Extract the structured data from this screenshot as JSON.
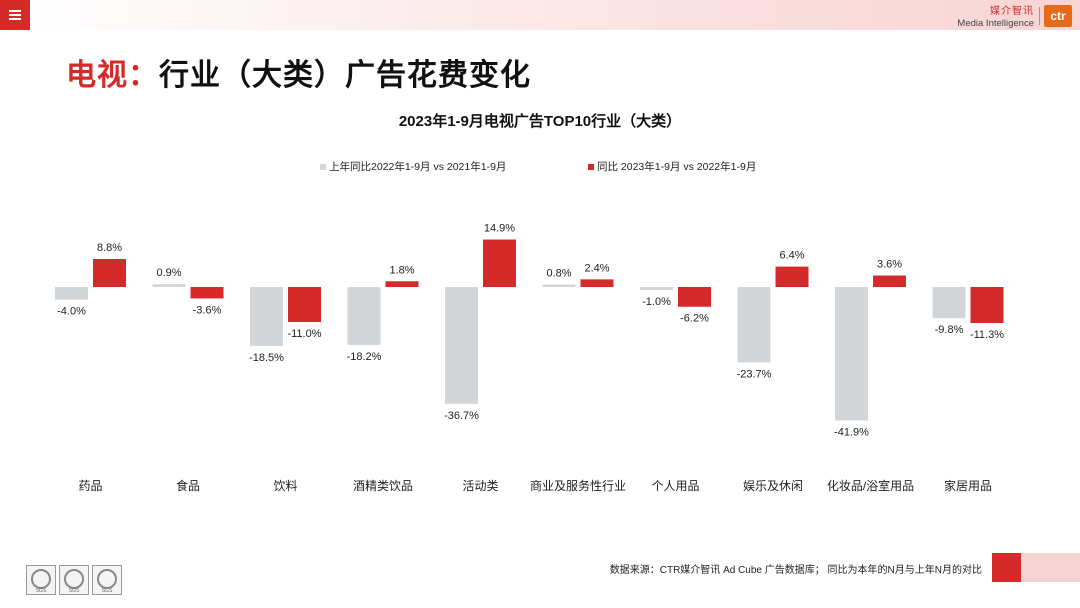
{
  "header": {
    "menu_icon": "menu-icon",
    "brand_cn": "媒介智讯",
    "brand_en": "Media Intelligence",
    "brand_logo": "ctr",
    "colors": {
      "accent": "#d42a2a",
      "logo": "#e56a1c",
      "band": "#f8d4d4"
    }
  },
  "page": {
    "title_accent": "电视：",
    "title_rest": "行业（大类）广告花费变化"
  },
  "chart_data": {
    "type": "bar",
    "title": "2023年1-9月电视广告TOP10行业（大类）",
    "categories": [
      "药品",
      "食品",
      "饮料",
      "酒精类饮品",
      "活动类",
      "商业及服务性行业",
      "个人用品",
      "娱乐及休闲",
      "化妆品/浴室用品",
      "家居用品"
    ],
    "series": [
      {
        "name": "上年同比2022年1-9月  vs  2021年1-9月",
        "color": "#d3d6d8",
        "values": [
          -4.0,
          0.9,
          -18.5,
          -18.2,
          -36.7,
          0.8,
          -1.0,
          -23.7,
          -41.9,
          -9.8
        ],
        "labels": [
          "-4.0%",
          "0.9%",
          "-18.5%",
          "-18.2%",
          "-36.7%",
          "0.8%",
          "-1.0%",
          "-23.7%",
          "-41.9%",
          "-9.8%"
        ]
      },
      {
        "name": "同比 2023年1-9月  vs  2022年1-9月",
        "color": "#d42a2a",
        "values": [
          8.8,
          -3.6,
          -11.0,
          1.8,
          14.9,
          2.4,
          -6.2,
          6.4,
          3.6,
          -11.3
        ],
        "labels": [
          "8.8%",
          "-3.6%",
          "-11.0%",
          "1.8%",
          "14.9%",
          "2.4%",
          "-6.2%",
          "6.4%",
          "3.6%",
          "-11.3%"
        ]
      }
    ],
    "ylim": [
      -41.9,
      14.9
    ],
    "legend": "top-center",
    "grid": false,
    "xlabel": "",
    "ylabel": ""
  },
  "footer": {
    "source_note": "数据来源：CTR媒介智讯 Ad Cube 广告数据库；  同比为本年的N月与上年N月的对比",
    "badges": [
      "SGS",
      "SGS",
      "SGS"
    ]
  }
}
